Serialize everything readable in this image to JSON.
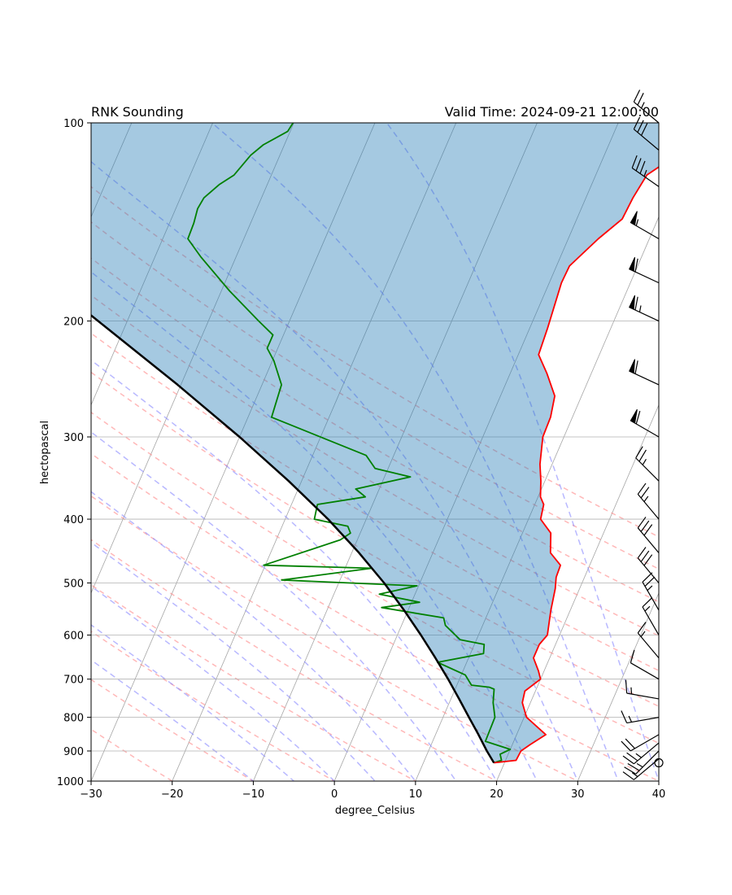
{
  "figure": {
    "title_left": "RNK Sounding",
    "title_right": "Valid Time: 2024-09-21 12:00:00"
  },
  "chart_data": {
    "type": "skew-t",
    "title_left": "RNK Sounding",
    "title_right": "Valid Time: 2024-09-21 12:00:00",
    "xlabel": "degree_Celsius",
    "ylabel": "hectopascal",
    "xlim": [
      -30,
      40
    ],
    "ylim": [
      1000,
      100
    ],
    "y_scale": "log",
    "xticks": [
      -30,
      -20,
      -10,
      0,
      10,
      20,
      30,
      40
    ],
    "yticks": [
      1000,
      900,
      800,
      700,
      600,
      500,
      400,
      300,
      200,
      100
    ],
    "grid": true,
    "colors": {
      "temperature": "#ff0000",
      "dewpoint": "#008000",
      "parcel": "#000000",
      "cape_fill": "#1f77b4",
      "dry_adiabats": "#ff8888",
      "moist_adiabats": "#8888ff",
      "isotherms": "#888888"
    },
    "temperature": [
      {
        "p": 938,
        "t": 18.7
      },
      {
        "p": 930,
        "t": 21.3
      },
      {
        "p": 900,
        "t": 21.4
      },
      {
        "p": 880,
        "t": 22.2
      },
      {
        "p": 850,
        "t": 23.6
      },
      {
        "p": 800,
        "t": 20.3
      },
      {
        "p": 760,
        "t": 19.0
      },
      {
        "p": 730,
        "t": 18.7
      },
      {
        "p": 700,
        "t": 20.0
      },
      {
        "p": 680,
        "t": 19.3
      },
      {
        "p": 650,
        "t": 18.0
      },
      {
        "p": 620,
        "t": 18.0
      },
      {
        "p": 600,
        "t": 18.5
      },
      {
        "p": 550,
        "t": 17.6
      },
      {
        "p": 510,
        "t": 17.0
      },
      {
        "p": 490,
        "t": 16.5
      },
      {
        "p": 470,
        "t": 16.4
      },
      {
        "p": 450,
        "t": 14.5
      },
      {
        "p": 420,
        "t": 13.5
      },
      {
        "p": 400,
        "t": 11.5
      },
      {
        "p": 380,
        "t": 11.1
      },
      {
        "p": 370,
        "t": 10.3
      },
      {
        "p": 350,
        "t": 9.5
      },
      {
        "p": 330,
        "t": 8.5
      },
      {
        "p": 300,
        "t": 7.4
      },
      {
        "p": 280,
        "t": 7.3
      },
      {
        "p": 260,
        "t": 6.7
      },
      {
        "p": 240,
        "t": 4.5
      },
      {
        "p": 225,
        "t": 2.5
      },
      {
        "p": 205,
        "t": 2.2
      },
      {
        "p": 175,
        "t": 1.5
      },
      {
        "p": 165,
        "t": 1.6
      },
      {
        "p": 150,
        "t": 3.7
      },
      {
        "p": 140,
        "t": 5.6
      },
      {
        "p": 130,
        "t": 5.8
      },
      {
        "p": 120,
        "t": 6.3
      },
      {
        "p": 115,
        "t": 7.9
      },
      {
        "p": 110,
        "t": 9.6
      },
      {
        "p": 105,
        "t": 11.1
      },
      {
        "p": 100,
        "t": 11.7
      }
    ],
    "dewpoint": [
      {
        "p": 938,
        "t": 18.7
      },
      {
        "p": 930,
        "t": 19.5
      },
      {
        "p": 910,
        "t": 19.0
      },
      {
        "p": 895,
        "t": 20.0
      },
      {
        "p": 870,
        "t": 16.5
      },
      {
        "p": 800,
        "t": 16.4
      },
      {
        "p": 760,
        "t": 15.4
      },
      {
        "p": 725,
        "t": 14.8
      },
      {
        "p": 720,
        "t": 14.1
      },
      {
        "p": 715,
        "t": 11.8
      },
      {
        "p": 690,
        "t": 10.5
      },
      {
        "p": 660,
        "t": 6.4
      },
      {
        "p": 640,
        "t": 11.6
      },
      {
        "p": 620,
        "t": 11.2
      },
      {
        "p": 610,
        "t": 8.0
      },
      {
        "p": 580,
        "t": 5.4
      },
      {
        "p": 565,
        "t": 4.8
      },
      {
        "p": 545,
        "t": -3.4
      },
      {
        "p": 535,
        "t": 1.0
      },
      {
        "p": 520,
        "t": -4.4
      },
      {
        "p": 505,
        "t": -0.2
      },
      {
        "p": 495,
        "t": -17.2
      },
      {
        "p": 475,
        "t": -6.7
      },
      {
        "p": 470,
        "t": -20.2
      },
      {
        "p": 430,
        "t": -12.1
      },
      {
        "p": 420,
        "t": -11.2
      },
      {
        "p": 410,
        "t": -11.9
      },
      {
        "p": 400,
        "t": -16.4
      },
      {
        "p": 380,
        "t": -16.8
      },
      {
        "p": 370,
        "t": -11.3
      },
      {
        "p": 360,
        "t": -12.9
      },
      {
        "p": 345,
        "t": -6.8
      },
      {
        "p": 335,
        "t": -11.6
      },
      {
        "p": 320,
        "t": -13.4
      },
      {
        "p": 280,
        "t": -27.1
      },
      {
        "p": 250,
        "t": -27.6
      },
      {
        "p": 230,
        "t": -29.8
      },
      {
        "p": 220,
        "t": -31.3
      },
      {
        "p": 210,
        "t": -31.3
      },
      {
        "p": 200,
        "t": -33.8
      },
      {
        "p": 180,
        "t": -39.0
      },
      {
        "p": 160,
        "t": -44.3
      },
      {
        "p": 150,
        "t": -46.9
      },
      {
        "p": 142,
        "t": -47.0
      },
      {
        "p": 135,
        "t": -47.3
      },
      {
        "p": 130,
        "t": -47.1
      },
      {
        "p": 124,
        "t": -45.9
      },
      {
        "p": 120,
        "t": -44.6
      },
      {
        "p": 112,
        "t": -43.6
      },
      {
        "p": 108,
        "t": -42.6
      },
      {
        "p": 103,
        "t": -40.3
      },
      {
        "p": 100,
        "t": -40.1
      }
    ],
    "parcel": [
      {
        "p": 938,
        "t": 18.7
      },
      {
        "p": 900,
        "t": 17.2
      },
      {
        "p": 850,
        "t": 15.3
      },
      {
        "p": 800,
        "t": 13.2
      },
      {
        "p": 750,
        "t": 11.0
      },
      {
        "p": 700,
        "t": 8.6
      },
      {
        "p": 650,
        "t": 5.9
      },
      {
        "p": 600,
        "t": 2.9
      },
      {
        "p": 550,
        "t": -0.5
      },
      {
        "p": 500,
        "t": -4.4
      },
      {
        "p": 450,
        "t": -9.1
      },
      {
        "p": 400,
        "t": -14.7
      },
      {
        "p": 350,
        "t": -21.6
      },
      {
        "p": 300,
        "t": -30.0
      },
      {
        "p": 250,
        "t": -40.4
      },
      {
        "p": 200,
        "t": -53.6
      },
      {
        "p": 175,
        "t": -61.5
      },
      {
        "p": 150,
        "t": -70.6
      },
      {
        "p": 125,
        "t": -80.9
      },
      {
        "p": 100,
        "t": -92.9
      }
    ],
    "wind_barbs": [
      {
        "p": 938,
        "speed_kt": 0,
        "dir": "calm"
      },
      {
        "p": 925,
        "speed_kt": 15,
        "dir_deg": 230
      },
      {
        "p": 900,
        "speed_kt": 25,
        "dir_deg": 225
      },
      {
        "p": 875,
        "speed_kt": 25,
        "dir_deg": 230
      },
      {
        "p": 850,
        "speed_kt": 20,
        "dir_deg": 240
      },
      {
        "p": 800,
        "speed_kt": 15,
        "dir_deg": 260
      },
      {
        "p": 750,
        "speed_kt": 15,
        "dir_deg": 280
      },
      {
        "p": 700,
        "speed_kt": 10,
        "dir_deg": 300
      },
      {
        "p": 650,
        "speed_kt": 15,
        "dir_deg": 320
      },
      {
        "p": 600,
        "speed_kt": 15,
        "dir_deg": 330
      },
      {
        "p": 550,
        "speed_kt": 25,
        "dir_deg": 330
      },
      {
        "p": 500,
        "speed_kt": 30,
        "dir_deg": 320
      },
      {
        "p": 450,
        "speed_kt": 30,
        "dir_deg": 320
      },
      {
        "p": 400,
        "speed_kt": 25,
        "dir_deg": 320
      },
      {
        "p": 350,
        "speed_kt": 25,
        "dir_deg": 315
      },
      {
        "p": 300,
        "speed_kt": 60,
        "dir_deg": 300
      },
      {
        "p": 250,
        "speed_kt": 60,
        "dir_deg": 295
      },
      {
        "p": 200,
        "speed_kt": 65,
        "dir_deg": 295
      },
      {
        "p": 175,
        "speed_kt": 60,
        "dir_deg": 295
      },
      {
        "p": 150,
        "speed_kt": 55,
        "dir_deg": 300
      },
      {
        "p": 125,
        "speed_kt": 35,
        "dir_deg": 305
      },
      {
        "p": 110,
        "speed_kt": 30,
        "dir_deg": 310
      },
      {
        "p": 100,
        "speed_kt": 25,
        "dir_deg": 310
      }
    ]
  }
}
